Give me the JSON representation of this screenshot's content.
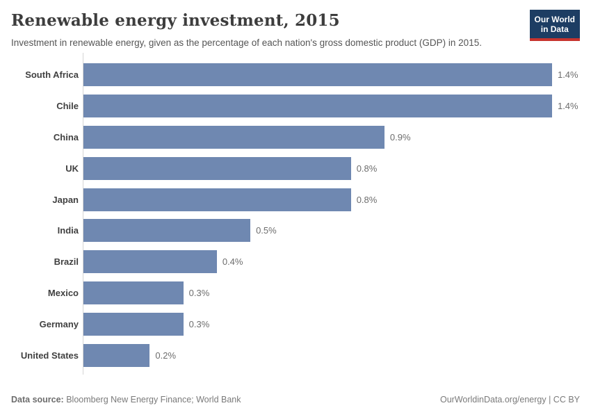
{
  "header": {
    "title": "Renewable energy investment, 2015",
    "subtitle": "Investment in renewable energy, given as the percentage of each nation's gross domestic product (GDP) in 2015.",
    "logo_line1": "Our World",
    "logo_line2": "in Data"
  },
  "colors": {
    "bar": "#6f88b1",
    "logo_bg": "#1d3d63",
    "logo_stripe": "#c7342e",
    "axis": "#d4d4d4"
  },
  "chart_data": {
    "type": "bar",
    "orientation": "horizontal",
    "title": "Renewable energy investment, 2015",
    "xlabel": "",
    "ylabel": "",
    "unit": "% of GDP",
    "categories": [
      "South Africa",
      "Chile",
      "China",
      "UK",
      "Japan",
      "India",
      "Brazil",
      "Mexico",
      "Germany",
      "United States"
    ],
    "values": [
      1.4,
      1.4,
      0.9,
      0.8,
      0.8,
      0.5,
      0.4,
      0.3,
      0.3,
      0.2
    ],
    "value_labels": [
      "1.4%",
      "1.4%",
      "0.9%",
      "0.8%",
      "0.8%",
      "0.5%",
      "0.4%",
      "0.3%",
      "0.3%",
      "0.2%"
    ],
    "xlim": [
      0,
      1.483
    ],
    "grid": false,
    "legend": false
  },
  "footer": {
    "source_label": "Data source:",
    "source_value": " Bloomberg New Energy Finance; World Bank",
    "right_text": "OurWorldinData.org/energy | CC BY"
  }
}
